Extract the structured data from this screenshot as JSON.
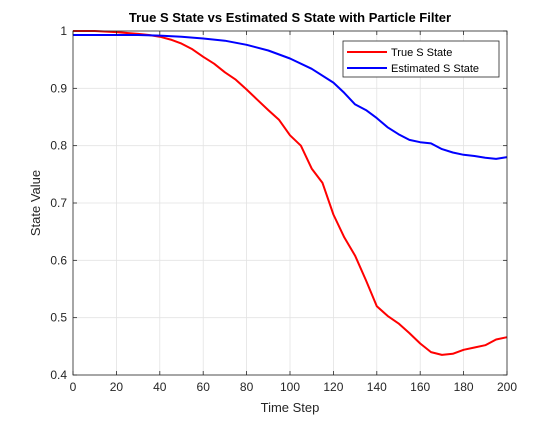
{
  "chart_data": {
    "type": "line",
    "title": "True S State vs Estimated S State with Particle Filter",
    "xlabel": "Time Step",
    "ylabel": "State Value",
    "xlim": [
      0,
      200
    ],
    "ylim": [
      0.4,
      1.0
    ],
    "xticks": [
      0,
      20,
      40,
      60,
      80,
      100,
      120,
      140,
      160,
      180,
      200
    ],
    "yticks": [
      0.4,
      0.5,
      0.6,
      0.7,
      0.8,
      0.9,
      1.0
    ],
    "xtick_labels": [
      "0",
      "20",
      "40",
      "60",
      "80",
      "100",
      "120",
      "140",
      "160",
      "180",
      "200"
    ],
    "ytick_labels": [
      "0.4",
      "0.5",
      "0.6",
      "0.7",
      "0.8",
      "0.9",
      "1"
    ],
    "grid": true,
    "legend_position": "top-right",
    "series": [
      {
        "name": "True S State",
        "color": "#ff0000",
        "x": [
          0,
          10,
          20,
          30,
          35,
          40,
          45,
          50,
          55,
          60,
          65,
          70,
          75,
          80,
          85,
          90,
          95,
          100,
          105,
          110,
          115,
          120,
          125,
          130,
          135,
          140,
          145,
          150,
          155,
          160,
          165,
          170,
          175,
          180,
          185,
          190,
          195,
          200
        ],
        "y": [
          1.0,
          1.0,
          0.998,
          0.995,
          0.993,
          0.99,
          0.985,
          0.978,
          0.968,
          0.955,
          0.943,
          0.928,
          0.915,
          0.898,
          0.88,
          0.862,
          0.845,
          0.818,
          0.8,
          0.76,
          0.735,
          0.68,
          0.64,
          0.608,
          0.565,
          0.52,
          0.503,
          0.49,
          0.473,
          0.455,
          0.44,
          0.435,
          0.437,
          0.444,
          0.448,
          0.452,
          0.462,
          0.466
        ]
      },
      {
        "name": "Estimated S State",
        "color": "#0000ff",
        "x": [
          0,
          10,
          20,
          30,
          40,
          50,
          60,
          70,
          80,
          90,
          100,
          110,
          120,
          125,
          130,
          135,
          140,
          145,
          150,
          155,
          160,
          165,
          170,
          175,
          180,
          185,
          190,
          195,
          200
        ],
        "y": [
          0.993,
          0.993,
          0.993,
          0.993,
          0.992,
          0.99,
          0.987,
          0.983,
          0.976,
          0.966,
          0.952,
          0.934,
          0.91,
          0.892,
          0.872,
          0.862,
          0.848,
          0.832,
          0.82,
          0.81,
          0.806,
          0.804,
          0.794,
          0.788,
          0.784,
          0.782,
          0.779,
          0.777,
          0.78
        ]
      }
    ]
  }
}
